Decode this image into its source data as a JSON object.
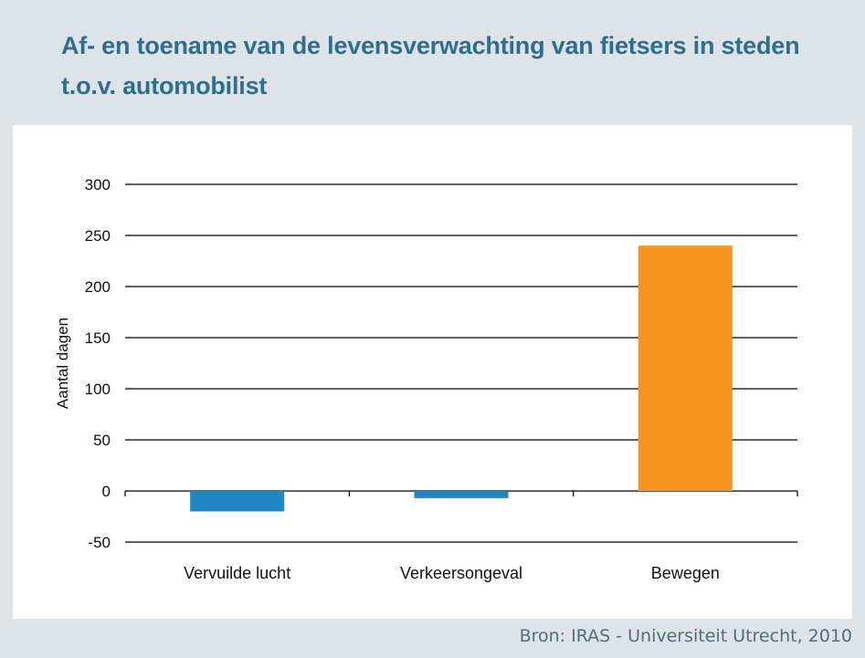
{
  "title_line1": "Af- en toename van de levensverwachting van fietsers in steden",
  "title_line2": "t.o.v. automobilist",
  "source": "Bron: IRAS - Universiteit Utrecht, 2010",
  "colors": {
    "background": "#dde3e6",
    "title": "#2e6e8e",
    "negative_bar": "#1f88c3",
    "positive_bar": "#f7931e",
    "gridline": "#000000"
  },
  "chart_data": {
    "type": "bar",
    "categories": [
      "Vervuilde lucht",
      "Verkeersongeval",
      "Bewegen"
    ],
    "values": [
      -20,
      -7,
      240
    ],
    "ylabel": "Aantal dagen",
    "xlabel": "",
    "ylim": [
      -50,
      300
    ],
    "yticks": [
      -50,
      0,
      50,
      100,
      150,
      200,
      250,
      300
    ],
    "grid": true,
    "bar_colors": [
      "#1f88c3",
      "#1f88c3",
      "#f7931e"
    ]
  }
}
